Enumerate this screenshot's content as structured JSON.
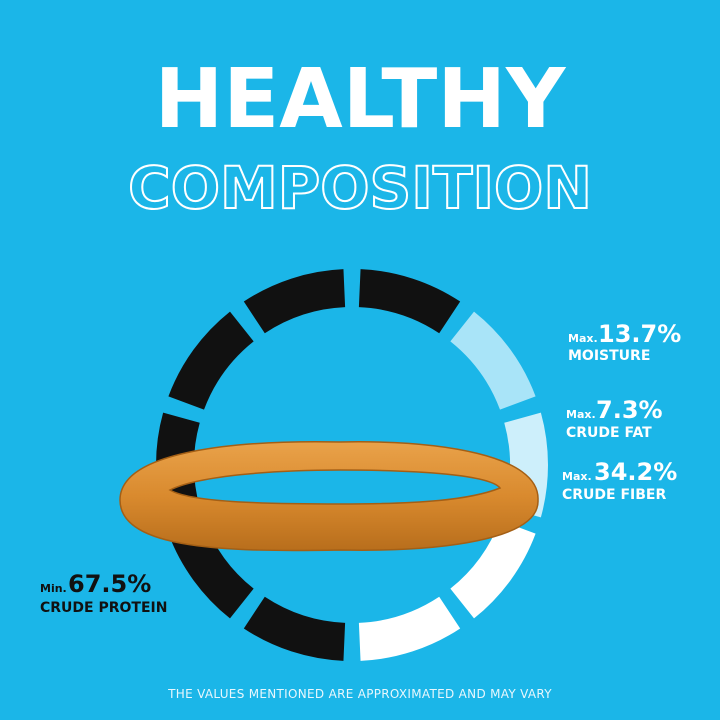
{
  "title": {
    "line1": "HEALTHY",
    "line2": "COMPOSITION"
  },
  "items": [
    {
      "prefix": "Max.",
      "value": "13.7%",
      "label": "MOISTURE"
    },
    {
      "prefix": "Max.",
      "value": "7.3%",
      "label": "CRUDE FAT"
    },
    {
      "prefix": "Max.",
      "value": "34.2%",
      "label": "CRUDE FIBER"
    },
    {
      "prefix": "Min.",
      "value": "67.5%",
      "label": "CRUDE PROTEIN"
    }
  ],
  "footer": "THE VALUES MENTIONED ARE APPROXIMATED AND MAY VARY"
}
